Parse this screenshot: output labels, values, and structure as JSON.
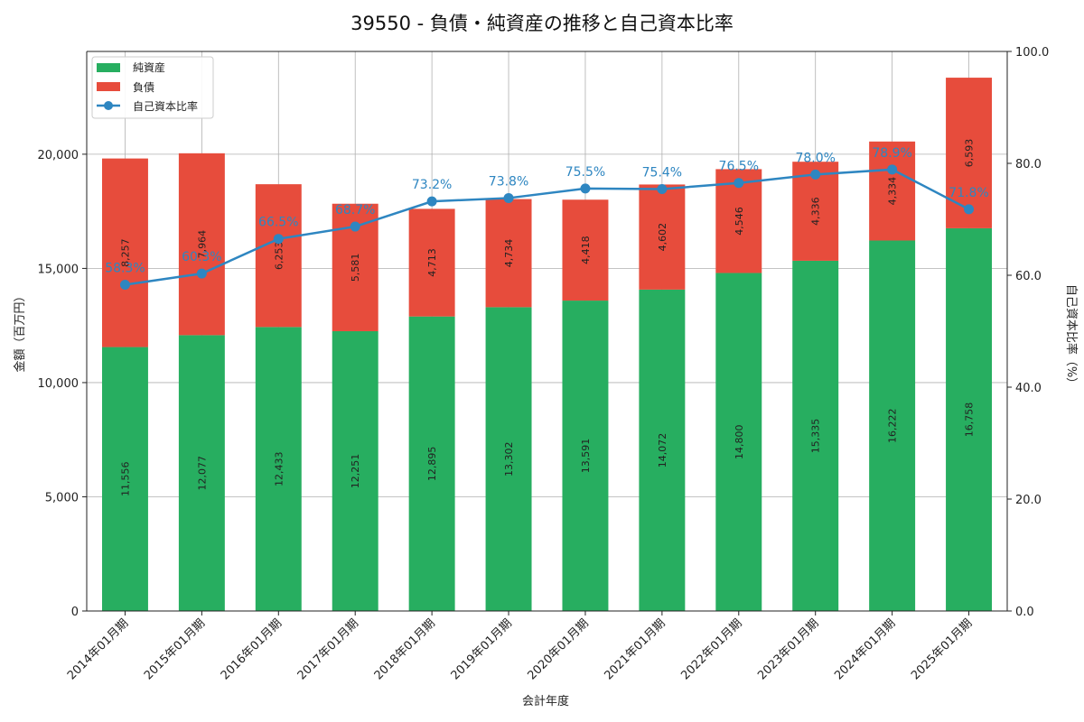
{
  "chart_data": {
    "type": "bar",
    "stacked": true,
    "title": "39550 - 負債・純資産の推移と自己資本比率",
    "xlabel": "会計年度",
    "ylabel": "金額（百万円）",
    "y2label": "自己資本比率（%）",
    "ylim": [
      0,
      24500
    ],
    "y2lim": [
      0,
      100
    ],
    "yticks": [
      "0",
      "5,000",
      "10,000",
      "15,000",
      "20,000"
    ],
    "y2ticks": [
      "0.0",
      "20.0",
      "40.0",
      "60.0",
      "80.0",
      "100.0"
    ],
    "grid": true,
    "legend_position": "top-left",
    "categories": [
      "2014年01月期",
      "2015年01月期",
      "2016年01月期",
      "2017年01月期",
      "2018年01月期",
      "2019年01月期",
      "2020年01月期",
      "2021年01月期",
      "2022年01月期",
      "2023年01月期",
      "2024年01月期",
      "2025年01月期"
    ],
    "series": [
      {
        "name": "純資産",
        "color": "#27ae60",
        "values": [
          11556,
          12077,
          12433,
          12251,
          12895,
          13302,
          13591,
          14072,
          14800,
          15335,
          16222,
          16758
        ],
        "labels": [
          "11,556",
          "12,077",
          "12,433",
          "12,251",
          "12,895",
          "13,302",
          "13,591",
          "14,072",
          "14,800",
          "15,335",
          "16,222",
          "16,758"
        ]
      },
      {
        "name": "負債",
        "color": "#e74c3c",
        "values": [
          8257,
          7964,
          6253,
          5581,
          4713,
          4734,
          4418,
          4602,
          4546,
          4336,
          4334,
          6593
        ],
        "labels": [
          "8,257",
          "7,964",
          "6,253",
          "5,581",
          "4,713",
          "4,734",
          "4,418",
          "4,602",
          "4,546",
          "4,336",
          "4,334",
          "6,593"
        ]
      }
    ],
    "line": {
      "name": "自己資本比率",
      "color": "#2e86c1",
      "axis": "right",
      "values": [
        58.3,
        60.3,
        66.5,
        68.7,
        73.2,
        73.8,
        75.5,
        75.4,
        76.5,
        78.0,
        78.9,
        71.8
      ],
      "labels": [
        "58.3%",
        "60.3%",
        "66.5%",
        "68.7%",
        "73.2%",
        "73.8%",
        "75.5%",
        "75.4%",
        "76.5%",
        "78.0%",
        "78.9%",
        "71.8%"
      ]
    }
  }
}
